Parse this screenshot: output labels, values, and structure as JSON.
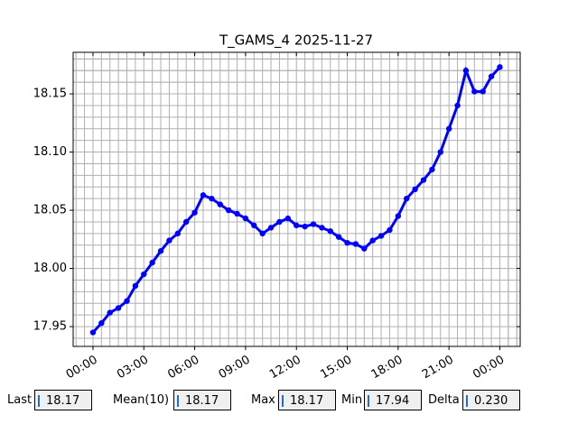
{
  "chart_data": {
    "type": "line",
    "title": "T_GAMS_4 2025-11-27",
    "x": [
      0,
      0.5,
      1,
      1.5,
      2,
      2.5,
      3,
      3.5,
      4,
      4.5,
      5,
      5.5,
      6,
      6.5,
      7,
      7.5,
      8,
      8.5,
      9,
      9.5,
      10,
      10.5,
      11,
      11.5,
      12,
      12.5,
      13,
      13.5,
      14,
      14.5,
      15,
      15.5,
      16,
      16.5,
      17,
      17.5,
      18,
      18.5,
      19,
      19.5,
      20,
      20.5,
      21,
      21.5,
      22,
      22.5,
      23,
      23.5,
      24
    ],
    "values": [
      17.945,
      17.953,
      17.962,
      17.966,
      17.972,
      17.985,
      17.995,
      18.005,
      18.015,
      18.024,
      18.03,
      18.04,
      18.048,
      18.063,
      18.06,
      18.055,
      18.05,
      18.047,
      18.043,
      18.037,
      18.03,
      18.035,
      18.04,
      18.043,
      18.037,
      18.036,
      18.038,
      18.035,
      18.032,
      18.027,
      18.022,
      18.021,
      18.017,
      18.024,
      18.028,
      18.033,
      18.045,
      18.06,
      18.068,
      18.076,
      18.085,
      18.1,
      18.12,
      18.14,
      18.17,
      18.152,
      18.152,
      18.165,
      18.173
    ],
    "color": "#0000ff",
    "xlim": [
      -1.17,
      25.2
    ],
    "xticks": [
      {
        "value": 0,
        "label": "00:00"
      },
      {
        "value": 3,
        "label": "03:00"
      },
      {
        "value": 6,
        "label": "06:00"
      },
      {
        "value": 9,
        "label": "09:00"
      },
      {
        "value": 12,
        "label": "12:00"
      },
      {
        "value": 15,
        "label": "15:00"
      },
      {
        "value": 18,
        "label": "18:00"
      },
      {
        "value": 21,
        "label": "21:00"
      },
      {
        "value": 24,
        "label": "00:00"
      }
    ],
    "ylim": [
      17.933,
      18.1857
    ],
    "yticks": [
      {
        "value": 17.95,
        "label": "17.95"
      },
      {
        "value": 18.0,
        "label": "18.00"
      },
      {
        "value": 18.05,
        "label": "18.05"
      },
      {
        "value": 18.1,
        "label": "18.10"
      },
      {
        "value": 18.15,
        "label": "18.15"
      }
    ],
    "grid": true
  },
  "stats": [
    {
      "label": "Last",
      "value": "18.17"
    },
    {
      "label": "Mean(10)",
      "value": "18.17"
    },
    {
      "label": "Max",
      "value": "18.17"
    },
    {
      "label": "Min",
      "value": "17.94"
    },
    {
      "label": "Delta",
      "value": "0.230"
    }
  ]
}
